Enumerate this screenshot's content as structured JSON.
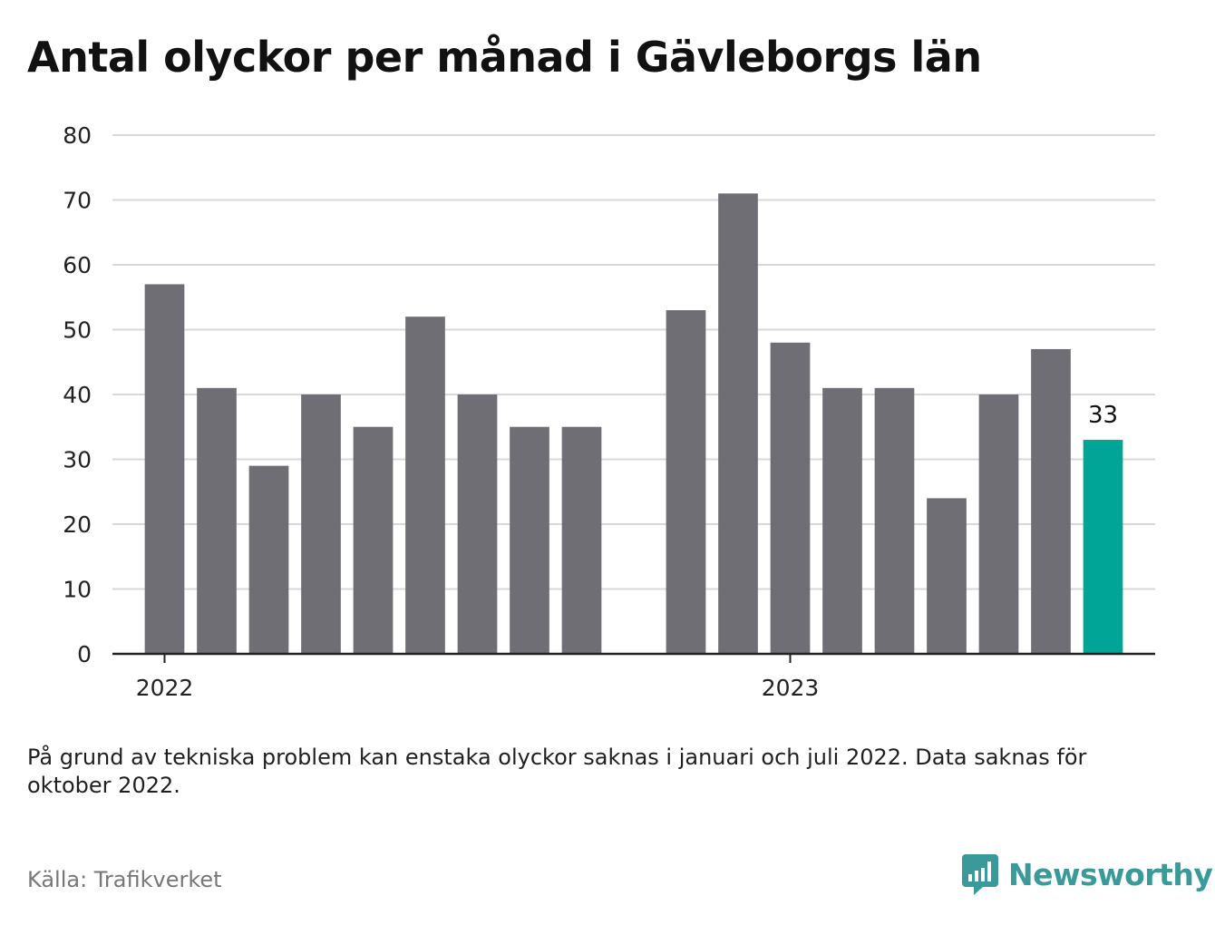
{
  "title": "Antal olyckor per månad i Gävleborgs län",
  "note": "På grund av tekniska problem kan enstaka olyckor saknas i januari och juli 2022. Data saknas för oktober 2022.",
  "source": "Källa: Trafikverket",
  "brand": "Newsworthy",
  "colors": {
    "bar": "#6f6e74",
    "highlight": "#00a598",
    "grid": "#d9d9d9",
    "axis": "#222222",
    "brand": "#3a9a9a"
  },
  "chart_data": {
    "type": "bar",
    "x_tick_labels": [
      "2022",
      "2023"
    ],
    "y_ticks": [
      0,
      10,
      20,
      30,
      40,
      50,
      60,
      70,
      80
    ],
    "ylim": [
      0,
      80
    ],
    "grid": true,
    "series": [
      {
        "values": [
          57,
          41,
          29,
          40,
          35,
          52,
          40,
          35,
          35,
          null,
          53,
          71,
          48,
          41,
          41,
          24,
          40,
          47,
          33
        ],
        "highlight_index": 18,
        "highlight_label": "33"
      }
    ]
  }
}
